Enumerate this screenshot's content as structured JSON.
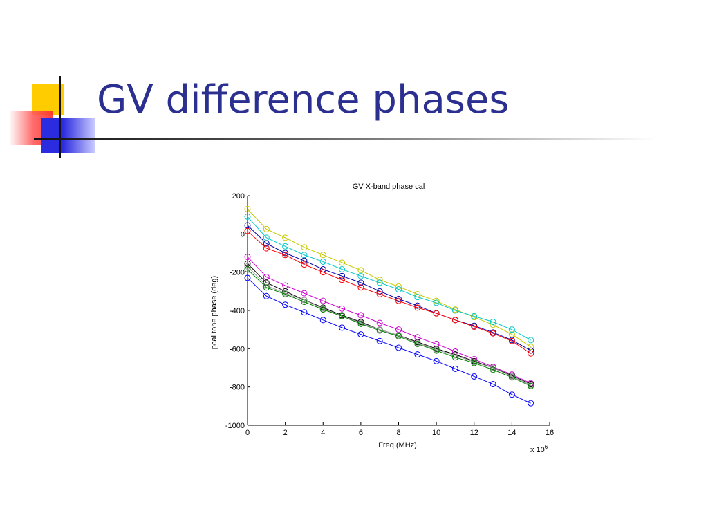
{
  "slide": {
    "title": "GV difference phases"
  },
  "colors": {
    "title": "#2b2f8f",
    "logo_yellow": "#ffcc00",
    "logo_red": "#ff3333",
    "logo_blue": "#2b2be0"
  },
  "chart_data": {
    "type": "line",
    "title": "GV X-band phase cal",
    "xlabel": "Freq (MHz)",
    "ylabel": "pcal tone phase (deg)",
    "x_multiplier_label": "x 10",
    "x_multiplier_exp": "6",
    "xlim": [
      0,
      16
    ],
    "ylim": [
      -1000,
      200
    ],
    "x_ticks": [
      0,
      2,
      4,
      6,
      8,
      10,
      12,
      14,
      16
    ],
    "x_tick_labels": [
      "0",
      "2",
      "4",
      "6",
      "8",
      "10",
      "12",
      "14",
      "16"
    ],
    "y_ticks": [
      200,
      0,
      -200,
      -400,
      -600,
      -800,
      -1000
    ],
    "y_tick_labels": [
      "200",
      "0",
      "-200",
      "-400",
      "-600",
      "-800",
      "-1000"
    ],
    "grid": false,
    "legend": "none",
    "marker": "circle",
    "x": [
      0,
      1,
      2,
      3,
      4,
      5,
      6,
      7,
      8,
      9,
      10,
      11,
      12,
      13,
      14,
      15
    ],
    "series": [
      {
        "color": "#c8c800",
        "values": [
          130,
          25,
          -20,
          -70,
          -110,
          -150,
          -190,
          -240,
          -275,
          -315,
          -350,
          -395,
          -435,
          -475,
          -525,
          -590
        ]
      },
      {
        "color": "#00c8c8",
        "values": [
          90,
          -20,
          -65,
          -110,
          -145,
          -185,
          -220,
          -255,
          -290,
          -330,
          -360,
          -400,
          -430,
          -460,
          -500,
          -555
        ]
      },
      {
        "color": "#0000aa",
        "values": [
          45,
          -50,
          -100,
          -140,
          -185,
          -220,
          -255,
          -300,
          -340,
          -375,
          -415,
          -450,
          -480,
          -515,
          -555,
          -610
        ]
      },
      {
        "color": "#ff0000",
        "values": [
          15,
          -75,
          -110,
          -160,
          -200,
          -240,
          -280,
          -315,
          -350,
          -385,
          -415,
          -450,
          -485,
          -520,
          -560,
          -625
        ]
      },
      {
        "color": "#cc00cc",
        "values": [
          -120,
          -225,
          -270,
          -310,
          -350,
          -390,
          -425,
          -465,
          -500,
          -540,
          -575,
          -615,
          -655,
          -695,
          -735,
          -780
        ]
      },
      {
        "color": "#000000",
        "values": [
          -155,
          -255,
          -300,
          -345,
          -385,
          -425,
          -460,
          -500,
          -530,
          -565,
          -600,
          -630,
          -665,
          -700,
          -740,
          -785
        ]
      },
      {
        "color": "#999999",
        "values": [
          -170,
          -270,
          -310,
          -345,
          -390,
          -430,
          -465,
          -500,
          -530,
          -570,
          -605,
          -635,
          -670,
          -700,
          -745,
          -790
        ]
      },
      {
        "color": "#008000",
        "values": [
          -185,
          -280,
          -315,
          -355,
          -395,
          -430,
          -470,
          -505,
          -535,
          -575,
          -610,
          -645,
          -675,
          -710,
          -750,
          -795
        ]
      },
      {
        "color": "#0000ff",
        "values": [
          -230,
          -325,
          -370,
          -410,
          -450,
          -490,
          -525,
          -560,
          -595,
          -630,
          -665,
          -705,
          -745,
          -785,
          -840,
          -885
        ]
      }
    ]
  }
}
